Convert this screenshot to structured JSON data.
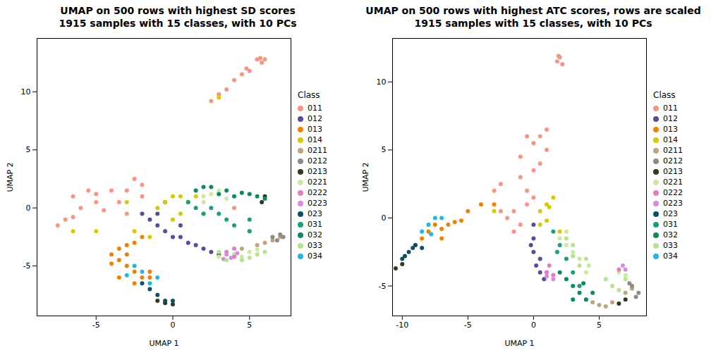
{
  "chart_data": [
    {
      "type": "scatter",
      "title": "UMAP on 500 rows with highest SD scores",
      "subtitle": "1915 samples with 15 classes, with 10 PCs",
      "x_label": "UMAP 1",
      "y_label": "UMAP 2",
      "legend_title": "Class",
      "legend": "right",
      "xlim": [
        -8.85,
        7.7
      ],
      "ylim": [
        -9.3,
        14.6
      ],
      "xticks": [
        -5,
        0,
        5
      ],
      "yticks": [
        -5,
        0,
        5,
        10
      ],
      "series": [
        {
          "name": "011",
          "color": "#F8957E",
          "x": [
            5.5,
            5.8,
            6,
            5.7,
            4.5,
            4,
            3.5,
            3,
            2.5,
            4.8,
            5,
            -7.5,
            -6.5,
            -6,
            -5.5,
            -5,
            -4,
            -3,
            -2.5,
            -2,
            -4.5,
            -5,
            -3.5,
            -6.5,
            -7,
            -3,
            -2,
            1,
            4,
            5
          ],
          "y": [
            12.8,
            12.5,
            12.8,
            12.9,
            11.5,
            11,
            10.2,
            9.8,
            9.2,
            12,
            11.8,
            -1.5,
            -0.8,
            0,
            1.5,
            1.2,
            1.5,
            1.5,
            2.5,
            2,
            -0.2,
            0.5,
            0.5,
            1,
            -1,
            -0.5,
            1,
            0.5,
            0,
            -2
          ]
        },
        {
          "name": "012",
          "color": "#5B4C9A",
          "x": [
            -2,
            -1.5,
            -1,
            -0.5,
            0,
            0.5,
            1,
            1.5,
            2,
            2.5,
            3,
            -1,
            0.5,
            -0.5
          ],
          "y": [
            -0.5,
            -1,
            -1.5,
            -2,
            -2.5,
            -2.5,
            -3,
            -3.2,
            -3.5,
            -3.8,
            -4,
            -0.5,
            -1.5,
            0.5
          ]
        },
        {
          "name": "013",
          "color": "#EF8300",
          "x": [
            -4,
            -3.5,
            -3.5,
            -3,
            -3,
            -2.5,
            -2,
            -3.5,
            -2.5,
            -1.5,
            -4,
            -3,
            -2.5,
            -2,
            -1.5
          ],
          "y": [
            -4,
            -4.5,
            -3.5,
            -5,
            -4,
            -5.5,
            -6,
            -6,
            -6.5,
            -6,
            -4.8,
            -3.2,
            -3,
            -2.5,
            -5.5
          ]
        },
        {
          "name": "014",
          "color": "#D6CA00",
          "x": [
            -1,
            -0.5,
            0,
            0.5,
            1,
            1.5,
            0.5,
            0,
            -1.5,
            -2.5,
            -5,
            -6.5,
            3,
            2,
            4,
            -3
          ],
          "y": [
            0,
            0.5,
            1,
            1,
            0.5,
            1,
            -0.5,
            -1,
            -2.5,
            -2,
            -2,
            -2,
            9.5,
            -0.5,
            -4,
            0.5
          ]
        },
        {
          "name": "0211",
          "color": "#BFA67A",
          "x": [
            6,
            6.5,
            7,
            4.5,
            5.5
          ],
          "y": [
            -3,
            -2.8,
            -2.5,
            -3.5,
            -3.2
          ]
        },
        {
          "name": "0212",
          "color": "#8E8A84",
          "x": [
            7,
            7.2,
            6.8,
            6.5
          ],
          "y": [
            -2.3,
            -2.5,
            -2.8,
            -2.5
          ]
        },
        {
          "name": "0213",
          "color": "#2F3A1E",
          "x": [
            0,
            -0.5,
            -1,
            5.8,
            6
          ],
          "y": [
            -8.3,
            -8.2,
            -8,
            0.5,
            1
          ]
        },
        {
          "name": "0221",
          "color": "#CBE89F",
          "x": [
            2,
            2.5,
            3,
            2,
            3.5,
            4,
            4.5,
            5,
            5.5,
            3
          ],
          "y": [
            1,
            1.2,
            1.5,
            0.5,
            0.8,
            -4,
            -4.2,
            -3.8,
            -3.6,
            -4.2
          ]
        },
        {
          "name": "0222",
          "color": "#E07FC0",
          "x": [
            4,
            3.5,
            4
          ],
          "y": [
            -3.5,
            -3.8,
            -4.2
          ]
        },
        {
          "name": "0223",
          "color": "#D48BE0",
          "x": [
            3.5,
            3.8,
            4.2,
            3.3
          ],
          "y": [
            -4,
            -4.3,
            -3.9,
            -4.4
          ]
        },
        {
          "name": "023",
          "color": "#0D4F6B",
          "x": [
            -1,
            -0.5,
            -1.5,
            0,
            -2
          ],
          "y": [
            -7.5,
            -8,
            -7,
            -8,
            -6.5
          ]
        },
        {
          "name": "031",
          "color": "#17A17B",
          "x": [
            1,
            2,
            3,
            3.5,
            2.5,
            1.5,
            4,
            5,
            5
          ],
          "y": [
            0.5,
            -0.5,
            -0.5,
            -1,
            0,
            0,
            -1.5,
            -2,
            -1
          ]
        },
        {
          "name": "032",
          "color": "#0B8A5F",
          "x": [
            1.5,
            2.5,
            3.5,
            4.5,
            5,
            5.5,
            4,
            3,
            6,
            2
          ],
          "y": [
            1.5,
            1.8,
            1.5,
            1.3,
            1.2,
            1,
            1,
            1.2,
            0.8,
            1.8
          ]
        },
        {
          "name": "033",
          "color": "#B5E48C",
          "x": [
            3.5,
            4.5,
            5,
            5.5,
            6,
            3
          ],
          "y": [
            -4.5,
            -4.5,
            -4.3,
            -4,
            -3.8,
            -3.8
          ]
        },
        {
          "name": "034",
          "color": "#23B5E3",
          "x": [
            -2,
            -1.5,
            -1,
            -2.5,
            -3
          ],
          "y": [
            -5.5,
            -6.5,
            -6,
            -5,
            -5.8
          ]
        }
      ]
    },
    {
      "type": "scatter",
      "title": "UMAP on 500 rows with highest ATC scores, rows are scaled",
      "subtitle": "1915 samples with 15 classes, with 10 PCs",
      "x_label": "UMAP 1",
      "y_label": "UMAP 2",
      "legend_title": "Class",
      "legend": "right",
      "xlim": [
        -10.74,
        8.6
      ],
      "ylim": [
        -7.2,
        13.2
      ],
      "xticks": [
        -10,
        -5,
        0,
        5
      ],
      "yticks": [
        -5,
        0,
        5,
        10
      ],
      "series": [
        {
          "name": "011",
          "color": "#F8957E",
          "x": [
            2,
            1.8,
            2.2,
            1.9,
            -0.5,
            0,
            0.5,
            1,
            -1,
            -1,
            0,
            0.5,
            -0.5,
            -0.5,
            -1.5,
            -1,
            -2.5,
            -3,
            -2.5,
            -1.5,
            -2,
            0,
            1
          ],
          "y": [
            11.8,
            11.5,
            11.3,
            11.9,
            6,
            5.5,
            6,
            6.5,
            4.5,
            3,
            3.5,
            4,
            2,
            1,
            0.5,
            -0.5,
            2.5,
            2,
            0.5,
            -1,
            0,
            1.5,
            5
          ]
        },
        {
          "name": "012",
          "color": "#5B4C9A",
          "x": [
            0,
            0,
            0,
            0.2,
            0.5,
            -0.2,
            0.8,
            0.5,
            1
          ],
          "y": [
            -0.5,
            -1.5,
            -2.5,
            -3.5,
            -4,
            -2,
            -4.5,
            -3,
            -4
          ]
        },
        {
          "name": "013",
          "color": "#EF8300",
          "x": [
            -9,
            -8.5,
            -8,
            -7.5,
            -7,
            -6.5,
            -6,
            -5,
            -4,
            -3,
            -5.5,
            -7
          ],
          "y": [
            -2,
            -1.5,
            -1,
            -0.5,
            -0.8,
            -0.5,
            -0.3,
            0.5,
            1,
            1,
            -0.2,
            -1.5
          ]
        },
        {
          "name": "014",
          "color": "#D6CA00",
          "x": [
            0.5,
            1,
            1.5,
            0.5,
            1,
            1.2,
            -3,
            2
          ],
          "y": [
            0.5,
            1,
            1.5,
            -0.5,
            -0.2,
            0.8,
            0.5,
            -1
          ]
        },
        {
          "name": "0211",
          "color": "#BFA67A",
          "x": [
            4,
            4.5,
            5,
            5.5,
            6,
            7,
            7.5
          ],
          "y": [
            -6,
            -6.2,
            -6.4,
            -6.5,
            -6.2,
            -5.5,
            -5.2
          ]
        },
        {
          "name": "0212",
          "color": "#8E8A84",
          "x": [
            7.5,
            8,
            7.8,
            7.3
          ],
          "y": [
            -5,
            -5.5,
            -5.8,
            -4.8
          ]
        },
        {
          "name": "0213",
          "color": "#2F3A1E",
          "x": [
            6.5,
            7,
            -10.5,
            -10
          ],
          "y": [
            -6.3,
            -6,
            -3.7,
            -3.4
          ]
        },
        {
          "name": "0221",
          "color": "#CBE89F",
          "x": [
            2,
            2.5,
            3,
            3.5,
            4,
            4.2,
            2.5,
            6.5,
            7
          ],
          "y": [
            -1.5,
            -2,
            -2.5,
            -3,
            -4,
            -3.5,
            -1,
            -4,
            -4.2
          ]
        },
        {
          "name": "0222",
          "color": "#E07FC0",
          "x": [
            1,
            1.2,
            1.5,
            6.5
          ],
          "y": [
            -4,
            -3.5,
            -4.2,
            -3.8
          ]
        },
        {
          "name": "0223",
          "color": "#D48BE0",
          "x": [
            1,
            1.5,
            6.8,
            7
          ],
          "y": [
            -4.3,
            -4.5,
            -3.5,
            -3.8
          ]
        },
        {
          "name": "023",
          "color": "#0D4F6B",
          "x": [
            -10,
            -9.5,
            -9.2,
            -9.8,
            -9,
            -8.5
          ],
          "y": [
            -3,
            -2.5,
            -2.2,
            -2.8,
            -2,
            -2.2
          ]
        },
        {
          "name": "031",
          "color": "#17A17B",
          "x": [
            1.5,
            2,
            2.5,
            3,
            1.8,
            3.5
          ],
          "y": [
            -1,
            -2,
            -3,
            -4,
            -2.5,
            -5
          ]
        },
        {
          "name": "032",
          "color": "#0B8A5F",
          "x": [
            2,
            2.5,
            3,
            3.5,
            3,
            4,
            4.5,
            3.8
          ],
          "y": [
            -4,
            -4.5,
            -5,
            -5.5,
            -6,
            -6,
            -5.5,
            -4.8
          ]
        },
        {
          "name": "033",
          "color": "#B5E48C",
          "x": [
            2.5,
            3,
            3.5,
            4,
            3,
            6,
            6.5,
            5.5,
            7
          ],
          "y": [
            -1.5,
            -2,
            -3.5,
            -3,
            -2.8,
            -5,
            -5.3,
            -4.5,
            -4.5
          ]
        },
        {
          "name": "034",
          "color": "#23B5E3",
          "x": [
            -8,
            -7.5,
            -7,
            -8.5,
            -7.8
          ],
          "y": [
            -0.5,
            0,
            0,
            -1,
            -1.2
          ]
        }
      ]
    }
  ]
}
